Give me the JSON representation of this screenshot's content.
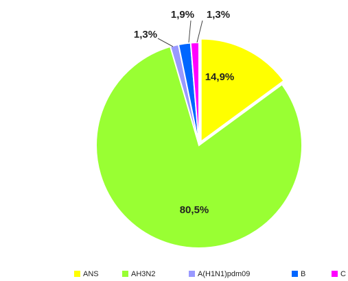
{
  "chart_data": {
    "type": "pie",
    "categories": [
      "ANS",
      "AH3N2",
      "A(H1N1)pdm09",
      "B",
      "C"
    ],
    "values": [
      14.9,
      80.5,
      1.3,
      1.9,
      1.3
    ],
    "value_labels": [
      "14,9%",
      "80,5%",
      "1,3%",
      "1,9%",
      "1,3%"
    ],
    "colors": [
      "#ffff00",
      "#99ff33",
      "#9999ff",
      "#0066ff",
      "#ff00ff"
    ],
    "legend": "bottom"
  }
}
